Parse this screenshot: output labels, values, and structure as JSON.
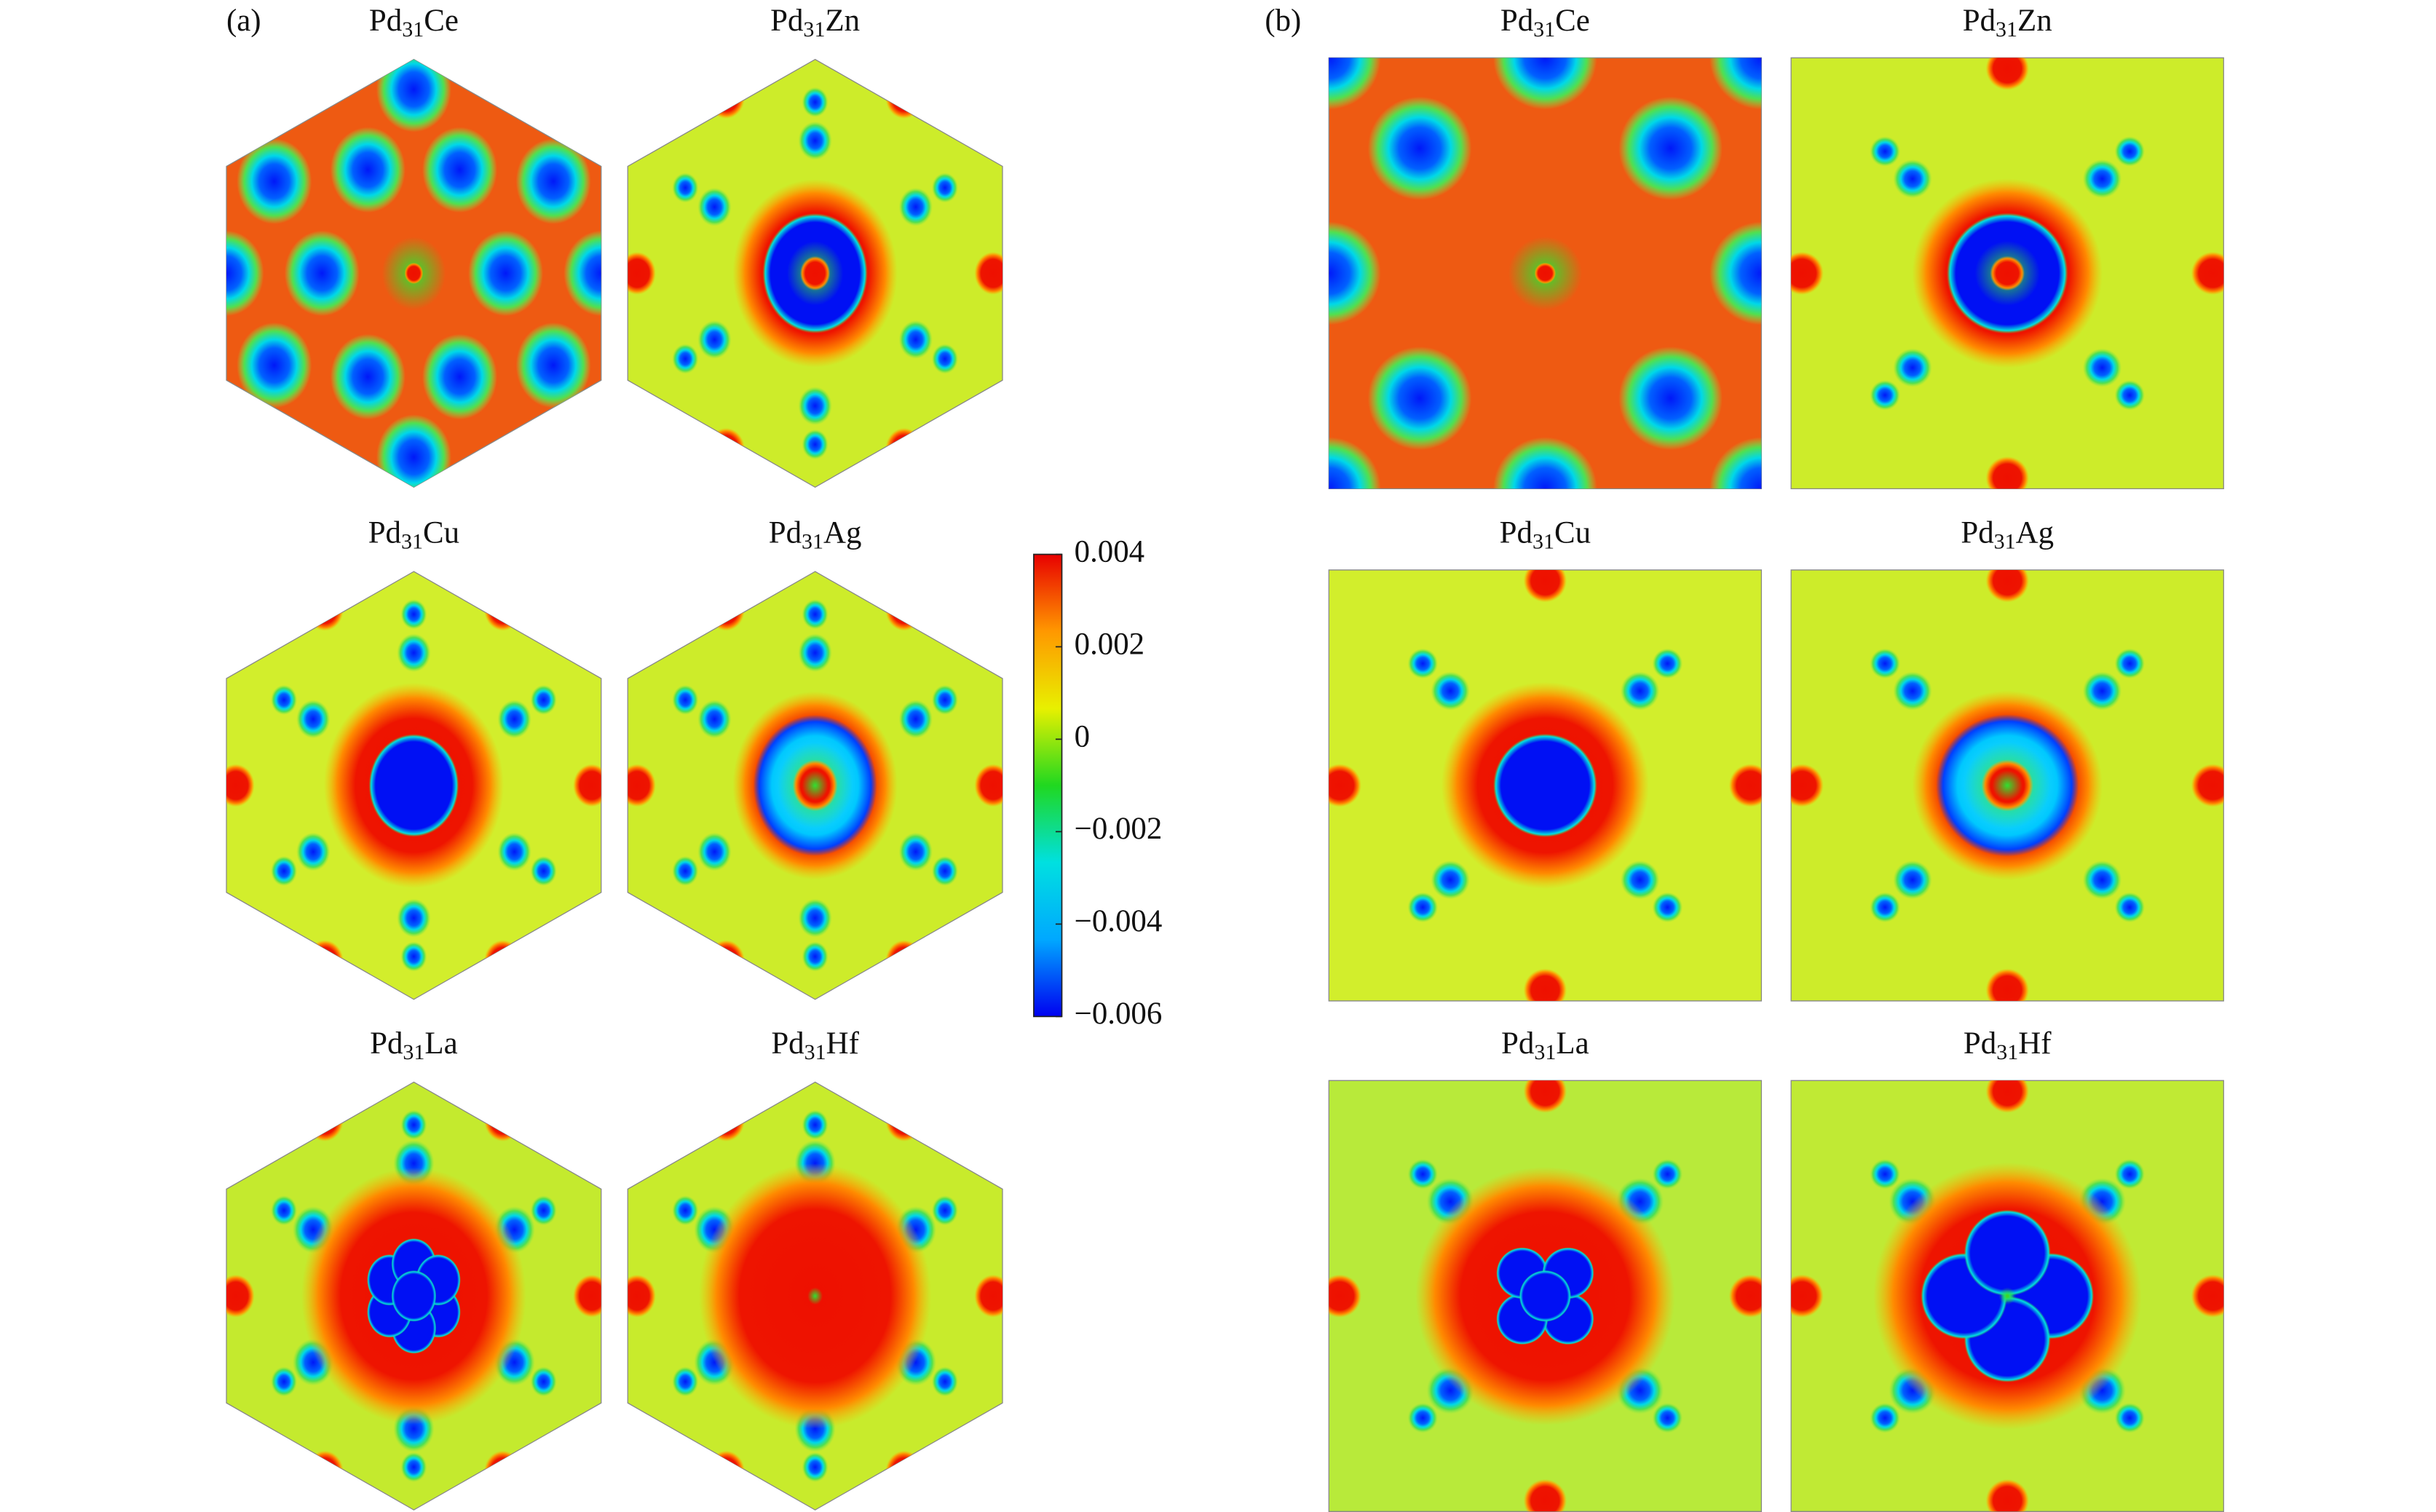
{
  "panels": [
    {
      "label": "(a)",
      "shape": "hexagon",
      "maps": [
        {
          "title": [
            "Pd",
            "31",
            "Ce"
          ],
          "color": "#ee5a12"
        },
        {
          "title": [
            "Pd",
            "31",
            "Zn"
          ],
          "color": "#cdec2a"
        },
        {
          "title": [
            "Pd",
            "31",
            "Cu"
          ],
          "color": "#d2ee2c"
        },
        {
          "title": [
            "Pd",
            "31",
            "Ag"
          ],
          "color": "#cdec2a"
        },
        {
          "title": [
            "Pd",
            "31",
            "La"
          ],
          "color": "#c4ea2e"
        },
        {
          "title": [
            "Pd",
            "31",
            "Hf"
          ],
          "color": "#c8eb2c"
        }
      ]
    },
    {
      "label": "(b)",
      "shape": "square",
      "maps": [
        {
          "title": [
            "Pd",
            "31",
            "Ce"
          ],
          "color": "#ee5a12"
        },
        {
          "title": [
            "Pd",
            "31",
            "Zn"
          ],
          "color": "#cdec2a"
        },
        {
          "title": [
            "Pd",
            "31",
            "Cu"
          ],
          "color": "#d2ee2c"
        },
        {
          "title": [
            "Pd",
            "31",
            "Ag"
          ],
          "color": "#cdec2a"
        },
        {
          "title": [
            "Pd",
            "31",
            "La"
          ],
          "color": "#b8ea3a"
        },
        {
          "title": [
            "Pd",
            "31",
            "Hf"
          ],
          "color": "#c0ea34"
        }
      ]
    }
  ],
  "colorbar": {
    "clim": [
      -0.006,
      0.004
    ],
    "colors": [
      "#0000f0",
      "#00a8ff",
      "#00e0e0",
      "#20d820",
      "#e8f000",
      "#ff9800",
      "#e80000"
    ],
    "ticks": [
      0.004,
      0.002,
      0,
      {
        "value": -0.002,
        "label": "−0.002"
      },
      {
        "value": -0.004,
        "label": "−0.004"
      },
      {
        "value": -0.006,
        "label": "−0.006"
      }
    ]
  }
}
